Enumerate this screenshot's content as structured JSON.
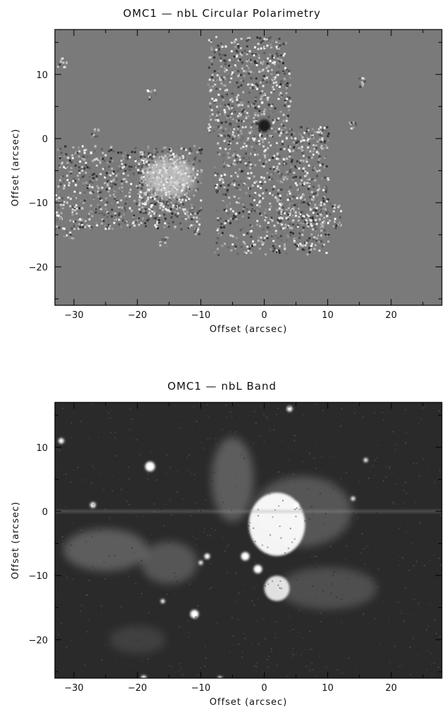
{
  "figures": [
    {
      "id": "polarimetry",
      "title": "OMC1  —  nbL  Circular  Polarimetry",
      "xlabel": "Offset  (arcsec)",
      "ylabel": "Offset  (arcsec)",
      "x_ticks": [
        "−30",
        "−20",
        "−10",
        "0",
        "10",
        "20"
      ],
      "y_ticks": [
        "10",
        "0",
        "−10",
        "−20"
      ],
      "x_tick_values": [
        -30,
        -20,
        -10,
        0,
        10,
        20
      ],
      "y_tick_values": [
        10,
        0,
        -10,
        -20
      ],
      "xlim": [
        -33,
        28
      ],
      "ylim": [
        -26,
        17
      ],
      "image_style": "polarimetry",
      "background_color": "#7a7a7a"
    },
    {
      "id": "band",
      "title": "OMC1  —  nbL  Band",
      "xlabel": "Offset  (arcsec)",
      "ylabel": "Offset  (arcsec)",
      "x_ticks": [
        "−30",
        "−20",
        "−10",
        "0",
        "10",
        "20"
      ],
      "y_ticks": [
        "10",
        "0",
        "−10",
        "−20"
      ],
      "x_tick_values": [
        -30,
        -20,
        -10,
        0,
        10,
        20
      ],
      "y_tick_values": [
        10,
        0,
        -10,
        -20
      ],
      "xlim": [
        -33,
        28
      ],
      "ylim": [
        -26,
        17
      ],
      "image_style": "intensity",
      "background_color": "#2a2a2a"
    }
  ]
}
